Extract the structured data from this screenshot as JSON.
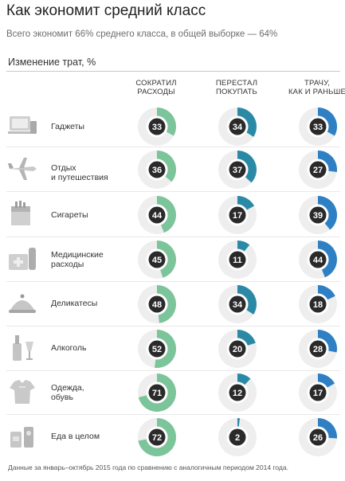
{
  "header": {
    "title": "Как экономит средний класс",
    "subtitle": "Всего экономит 66% среднего класса, в общей выборке — 64%",
    "section_title": "Изменение трат, %"
  },
  "columns": [
    {
      "label": "СОКРАТИЛ\nРАСХОДЫ",
      "color": "#7cc49a"
    },
    {
      "label": "ПЕРЕСТАЛ\nПОКУПАТЬ",
      "color": "#2a8aa6"
    },
    {
      "label": "ТРАЧУ,\nКАК И РАНЬШЕ",
      "color": "#2f7fc4"
    }
  ],
  "rows": [
    {
      "label": "Гаджеты",
      "icon": "gadgets-icon"
    },
    {
      "label": "Отдых\nи путешествия",
      "icon": "airplane-icon"
    },
    {
      "label": "Сигареты",
      "icon": "cigarettes-icon"
    },
    {
      "label": "Медицинские\nрасходы",
      "icon": "medicine-icon"
    },
    {
      "label": "Деликатесы",
      "icon": "delicacy-icon"
    },
    {
      "label": "Алкоголь",
      "icon": "alcohol-icon"
    },
    {
      "label": "Одежда,\nобувь",
      "icon": "clothes-icon"
    },
    {
      "label": "Еда в целом",
      "icon": "food-icon"
    }
  ],
  "chart_data": {
    "type": "pie",
    "categories": [
      "Гаджеты",
      "Отдых и путешествия",
      "Сигареты",
      "Медицинские расходы",
      "Деликатесы",
      "Алкоголь",
      "Одежда, обувь",
      "Еда в целом"
    ],
    "series": [
      {
        "name": "СОКРАТИЛ РАСХОДЫ",
        "values": [
          33,
          36,
          44,
          45,
          48,
          52,
          71,
          72
        ]
      },
      {
        "name": "ПЕРЕСТАЛ ПОКУПАТЬ",
        "values": [
          34,
          37,
          17,
          11,
          34,
          20,
          12,
          2
        ]
      },
      {
        "name": "ТРАЧУ, КАК И РАНЬШЕ",
        "values": [
          33,
          27,
          39,
          44,
          18,
          28,
          17,
          26
        ]
      }
    ]
  },
  "footnote": "Данные за январь–октябрь 2015 года по сравнению с аналогичным периодом 2014 года."
}
